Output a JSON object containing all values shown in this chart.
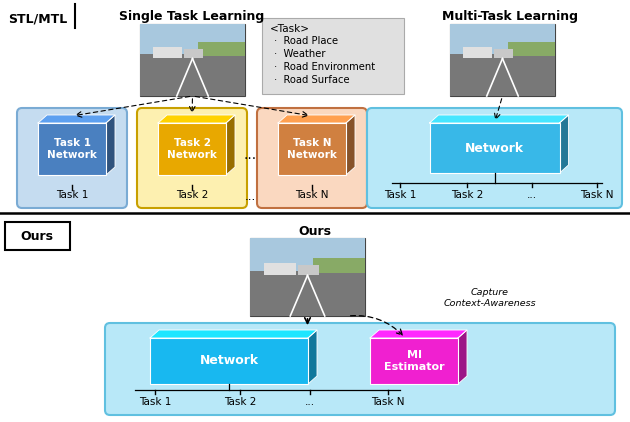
{
  "fig_width": 6.3,
  "fig_height": 4.22,
  "bg_color": "#ffffff",
  "top_label": "STL/MTL",
  "stl_title": "Single Task Learning",
  "mtl_title": "Multi-Task Learning",
  "ours_label": "Ours",
  "ours_title": "Ours",
  "stl_bg_colors": [
    "#c5dcf0",
    "#fdf0b0",
    "#fad8c0"
  ],
  "stl_box_colors": [
    "#4a80c0",
    "#e8a800",
    "#d08040"
  ],
  "stl_box_labels": [
    "Task 1\nNetwork",
    "Task 2\nNetwork",
    "Task N\nNetwork"
  ],
  "stl_task_labels": [
    "Task 1",
    "Task 2",
    "Task N"
  ],
  "stl_panel_ec": [
    "#7aaBd4",
    "#c8a000",
    "#c07040"
  ],
  "mtl_bg_color": "#b8e8f8",
  "mtl_box_color": "#38b8e8",
  "mtl_box_label": "Network",
  "mtl_task_labels": [
    "Task 1",
    "Task 2",
    "...",
    "Task N"
  ],
  "ours_bg_color": "#b8e8f8",
  "ours_network_color": "#18b8f0",
  "ours_mi_color": "#f020d0",
  "ours_network_label": "Network",
  "ours_mi_label": "MI\nEstimator",
  "ours_task_labels": [
    "Task 1",
    "Task 2",
    "...",
    "Task N"
  ],
  "capture_text": "Capture\nContext-Awareness"
}
